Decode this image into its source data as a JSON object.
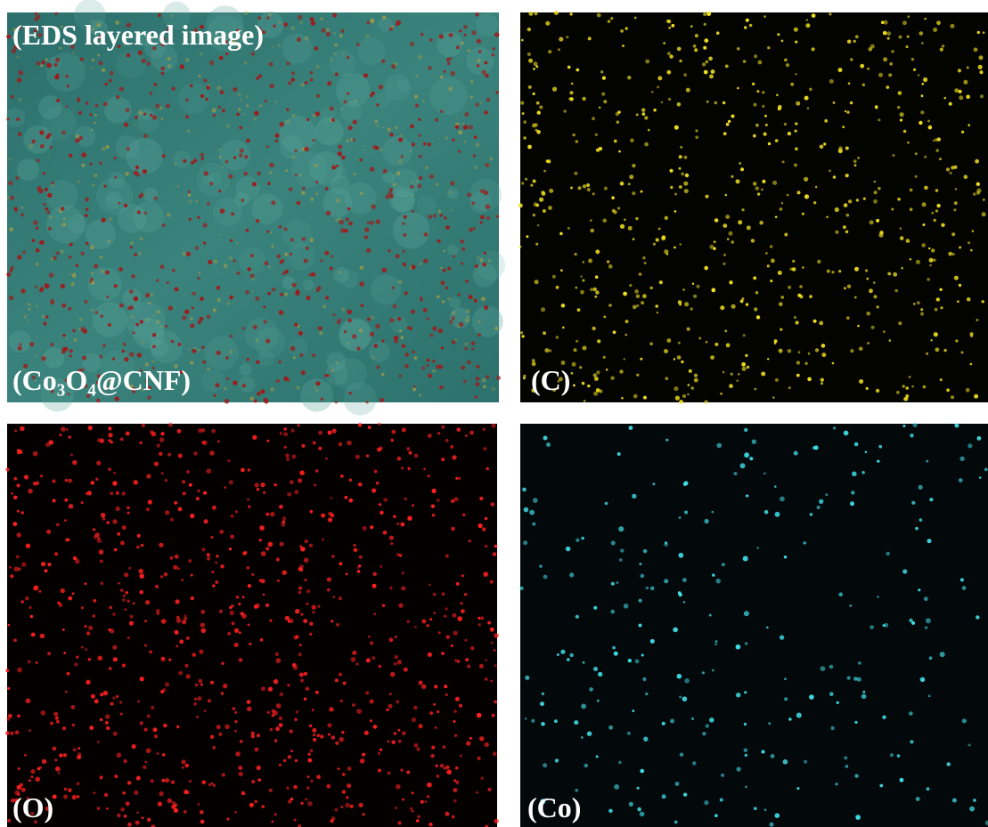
{
  "panels": [
    {
      "labels": [
        "(EDS layered image)",
        "(Co₃O₄@CNF)"
      ]
    },
    {
      "labels": [
        "(C)"
      ]
    },
    {
      "labels": [
        "(O)"
      ]
    },
    {
      "labels": [
        "(Co)"
      ]
    }
  ]
}
